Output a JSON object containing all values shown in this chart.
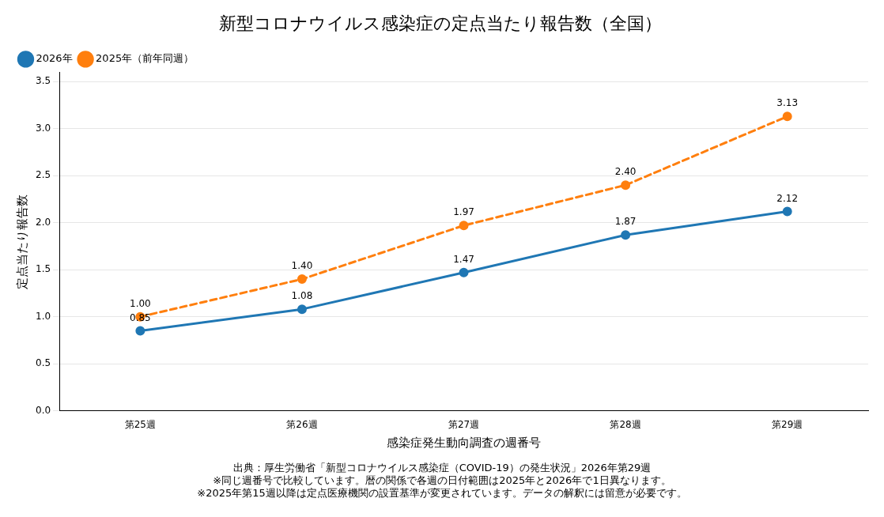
{
  "chart_data": {
    "type": "line",
    "title": "新型コロナウイルス感染症の定点当たり報告数（全国）",
    "xlabel": "感染症発生動向調査の週番号",
    "ylabel": "定点当たり報告数",
    "categories": [
      "第25週",
      "第26週",
      "第27週",
      "第28週",
      "第29週"
    ],
    "series": [
      {
        "name": "2026年",
        "color": "#1f77b4",
        "values": [
          0.85,
          1.08,
          1.47,
          1.87,
          2.12
        ],
        "value_labels": [
          "0.85",
          "1.08",
          "1.47",
          "1.87",
          "2.12"
        ],
        "line_style": "solid"
      },
      {
        "name": "2025年（前年同週）",
        "color": "#ff7f0e",
        "values": [
          1.0,
          1.4,
          1.97,
          2.4,
          3.13
        ],
        "value_labels": [
          "1.00",
          "1.40",
          "1.97",
          "2.40",
          "3.13"
        ],
        "line_style": "dashed"
      }
    ],
    "ylim": [
      0,
      3.6
    ],
    "yticks": [
      {
        "value": 0,
        "label": "0.0"
      },
      {
        "value": 0.5,
        "label": "0.5"
      },
      {
        "value": 1,
        "label": "1.0"
      },
      {
        "value": 1.5,
        "label": "1.5"
      },
      {
        "value": 2,
        "label": "2.0"
      },
      {
        "value": 2.5,
        "label": "2.5"
      },
      {
        "value": 3,
        "label": "3.0"
      },
      {
        "value": 3.5,
        "label": "3.5"
      }
    ],
    "grid": "y",
    "legend": "top left",
    "marker": "circle",
    "annotations": [
      "出典：厚生労働省「新型コロナウイルス感染症（COVID-19）の発生状況」2026年第29週",
      "※同じ週番号で比較しています。暦の関係で各週の日付範囲は2025年と2026年で1日異なります。",
      "※2025年第15週以降は定点医療機関の設置基準が変更されています。データの解釈には留意が必要です。"
    ]
  }
}
